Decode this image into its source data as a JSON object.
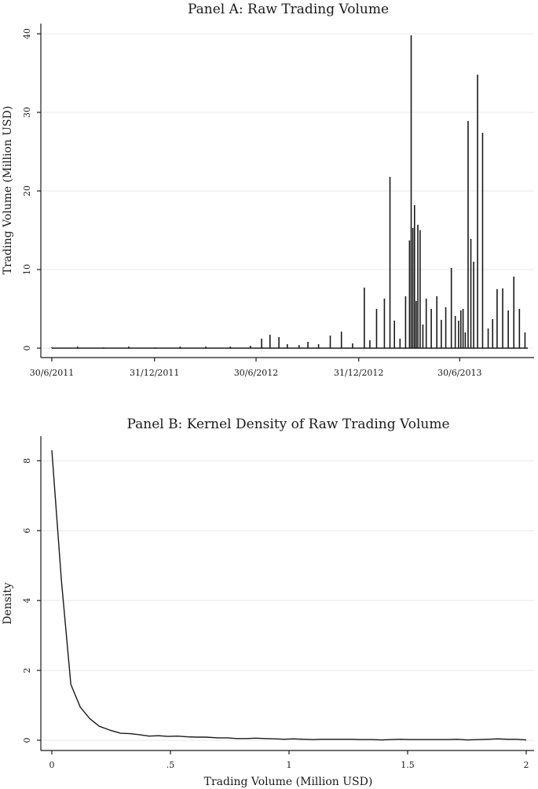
{
  "chart_data": [
    {
      "type": "line",
      "title": "Panel A: Raw Trading Volume",
      "xlabel": "",
      "ylabel": "Trading Volume (Million USD)",
      "xlim": [
        "30/6/2011",
        "30/10/2013"
      ],
      "ylim": [
        0,
        40
      ],
      "yticks": [
        0,
        10,
        20,
        30,
        40
      ],
      "xtick_labels": [
        "30/6/2011",
        "31/12/2011",
        "30/6/2012",
        "31/12/2012",
        "30/6/2013"
      ],
      "xtick_dates": [
        "2011-06-30",
        "2011-12-31",
        "2012-06-30",
        "2012-12-31",
        "2013-06-30"
      ],
      "grid": true,
      "series": [
        {
          "x": [
            "2011-06-30",
            "2011-08-15",
            "2011-10-01",
            "2011-11-15",
            "2012-01-01",
            "2012-02-15",
            "2012-04-01",
            "2012-05-15",
            "2012-06-20",
            "2012-07-10",
            "2012-07-25",
            "2012-08-10",
            "2012-08-25",
            "2012-09-15",
            "2012-10-01",
            "2012-10-20",
            "2012-11-10",
            "2012-11-30",
            "2012-12-20",
            "2013-01-10",
            "2013-01-20",
            "2013-02-01",
            "2013-02-15",
            "2013-02-25",
            "2013-03-05",
            "2013-03-15",
            "2013-03-25",
            "2013-04-01",
            "2013-04-04",
            "2013-04-07",
            "2013-04-10",
            "2013-04-13",
            "2013-04-16",
            "2013-04-20",
            "2013-04-25",
            "2013-05-01",
            "2013-05-10",
            "2013-05-20",
            "2013-05-28",
            "2013-06-05",
            "2013-06-15",
            "2013-06-22",
            "2013-06-28",
            "2013-07-02",
            "2013-07-06",
            "2013-07-10",
            "2013-07-15",
            "2013-07-20",
            "2013-07-25",
            "2013-08-01",
            "2013-08-10",
            "2013-08-20",
            "2013-08-28",
            "2013-09-05",
            "2013-09-15",
            "2013-09-25",
            "2013-10-05",
            "2013-10-15",
            "2013-10-25"
          ],
          "y": [
            0.1,
            0.2,
            0.1,
            0.2,
            0.1,
            0.2,
            0.2,
            0.2,
            0.3,
            1.2,
            1.7,
            1.4,
            0.5,
            0.4,
            0.8,
            0.5,
            1.6,
            2.1,
            0.6,
            7.7,
            1.0,
            5.0,
            6.3,
            21.8,
            3.5,
            1.2,
            6.6,
            13.7,
            39.8,
            15.3,
            18.2,
            6.0,
            15.7,
            15.0,
            3.0,
            6.3,
            5.0,
            6.6,
            3.6,
            5.2,
            10.2,
            4.1,
            3.5,
            4.8,
            5.0,
            2.0,
            28.9,
            13.9,
            11.0,
            34.8,
            27.4,
            2.5,
            3.7,
            7.5,
            7.6,
            4.8,
            9.1,
            5.0,
            2.0
          ]
        }
      ]
    },
    {
      "type": "line",
      "title": "Panel B: Kernel Density of Raw Trading Volume",
      "xlabel": "Trading Volume (Million USD)",
      "ylabel": "Density",
      "xlim": [
        0,
        2
      ],
      "ylim": [
        0,
        8.3
      ],
      "xticks": [
        0,
        0.5,
        1,
        1.5,
        2
      ],
      "xtick_labels": [
        "0",
        ".5",
        "1",
        "1.5",
        "2"
      ],
      "yticks": [
        0,
        2,
        4,
        6,
        8
      ],
      "grid": true,
      "series": [
        {
          "x": [
            0.0,
            0.04,
            0.08,
            0.12,
            0.16,
            0.2,
            0.25,
            0.29,
            0.33,
            0.37,
            0.41,
            0.45,
            0.49,
            0.53,
            0.57,
            0.61,
            0.65,
            0.7,
            0.74,
            0.78,
            0.82,
            0.86,
            0.9,
            0.94,
            0.98,
            1.02,
            1.06,
            1.1,
            1.14,
            1.18,
            1.22,
            1.26,
            1.3,
            1.35,
            1.39,
            1.43,
            1.47,
            1.51,
            1.55,
            1.59,
            1.63,
            1.67,
            1.71,
            1.75,
            1.8,
            1.84,
            1.88,
            1.92,
            1.96,
            2.0
          ],
          "y": [
            8.3,
            4.6,
            1.6,
            0.95,
            0.62,
            0.4,
            0.28,
            0.2,
            0.19,
            0.16,
            0.12,
            0.13,
            0.11,
            0.12,
            0.1,
            0.09,
            0.09,
            0.07,
            0.07,
            0.05,
            0.05,
            0.06,
            0.05,
            0.04,
            0.03,
            0.04,
            0.03,
            0.02,
            0.03,
            0.03,
            0.03,
            0.03,
            0.02,
            0.02,
            0.01,
            0.02,
            0.03,
            0.02,
            0.02,
            0.02,
            0.02,
            0.02,
            0.03,
            0.01,
            0.02,
            0.03,
            0.04,
            0.03,
            0.03,
            0.01
          ]
        }
      ]
    }
  ]
}
